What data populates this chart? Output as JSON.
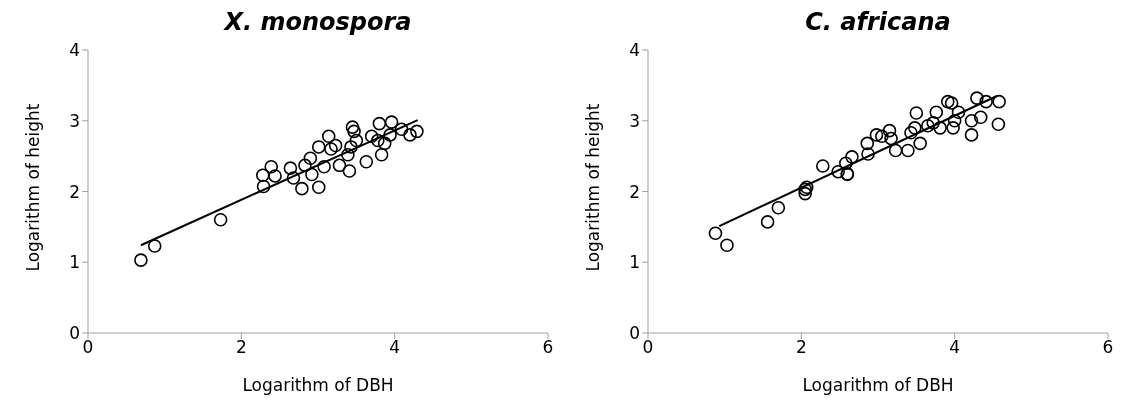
{
  "chart_data": [
    {
      "type": "scatter",
      "title": "X. monospora",
      "xlabel": "Logarithm of DBH",
      "ylabel": "Logarithm of height",
      "xlim": [
        0,
        6
      ],
      "xticks": [
        0,
        2,
        4,
        6
      ],
      "ylim": [
        0,
        4
      ],
      "yticks": [
        0,
        1,
        2,
        3,
        4
      ],
      "grid": false,
      "legend": false,
      "marker": "circle",
      "series": [
        {
          "color": "#000000",
          "x": [
            0.69,
            0.87,
            1.73,
            2.28,
            2.29,
            2.39,
            2.44,
            2.64,
            2.68,
            2.79,
            2.83,
            2.9,
            2.92,
            3.01,
            3.01,
            3.08,
            3.14,
            3.17,
            3.23,
            3.28,
            3.39,
            3.41,
            3.43,
            3.45,
            3.47,
            3.5,
            3.63,
            3.7,
            3.78,
            3.8,
            3.83,
            3.87,
            3.94,
            3.96,
            4.09,
            4.2,
            4.29
          ],
          "values": [
            1.03,
            1.23,
            1.6,
            2.23,
            2.07,
            2.35,
            2.22,
            2.33,
            2.19,
            2.04,
            2.37,
            2.47,
            2.24,
            2.06,
            2.63,
            2.35,
            2.78,
            2.6,
            2.65,
            2.37,
            2.52,
            2.29,
            2.63,
            2.91,
            2.85,
            2.72,
            2.42,
            2.78,
            2.72,
            2.96,
            2.52,
            2.68,
            2.8,
            2.98,
            2.88,
            2.8,
            2.85
          ]
        },
        {
          "type": "line",
          "color": "#000000",
          "marker": "none",
          "x": [
            0.69,
            4.3
          ],
          "values": [
            1.24,
            3.01
          ]
        }
      ]
    },
    {
      "type": "scatter",
      "title": "C. africana",
      "xlabel": "Logarithm of DBH",
      "ylabel": "Logarithm of height",
      "xlim": [
        0,
        6
      ],
      "xticks": [
        0,
        2,
        4,
        6
      ],
      "ylim": [
        0,
        4
      ],
      "yticks": [
        0,
        1,
        2,
        3,
        4
      ],
      "grid": false,
      "legend": false,
      "marker": "circle",
      "series": [
        {
          "color": "#000000",
          "x": [
            0.88,
            1.03,
            1.56,
            1.7,
            2.05,
            2.05,
            2.07,
            2.28,
            2.48,
            2.6,
            2.58,
            2.6,
            2.66,
            2.86,
            2.87,
            2.98,
            3.05,
            3.15,
            3.17,
            3.23,
            3.39,
            3.43,
            3.48,
            3.5,
            3.55,
            3.65,
            3.72,
            3.76,
            3.81,
            3.91,
            3.96,
            3.98,
            4.0,
            4.05,
            4.22,
            4.22,
            4.29,
            4.34,
            4.41,
            4.58,
            4.57
          ],
          "values": [
            1.41,
            1.24,
            1.57,
            1.77,
            2.03,
            1.97,
            2.06,
            2.36,
            2.28,
            2.25,
            2.4,
            2.24,
            2.49,
            2.68,
            2.53,
            2.8,
            2.78,
            2.86,
            2.75,
            2.58,
            2.58,
            2.83,
            2.9,
            3.11,
            2.68,
            2.93,
            2.97,
            3.12,
            2.9,
            3.27,
            3.25,
            2.9,
            3.0,
            3.12,
            2.8,
            3.0,
            3.32,
            3.05,
            3.27,
            3.27,
            2.95
          ]
        },
        {
          "type": "line",
          "color": "#000000",
          "marker": "none",
          "x": [
            0.93,
            4.55
          ],
          "values": [
            1.51,
            3.35
          ]
        }
      ]
    }
  ]
}
